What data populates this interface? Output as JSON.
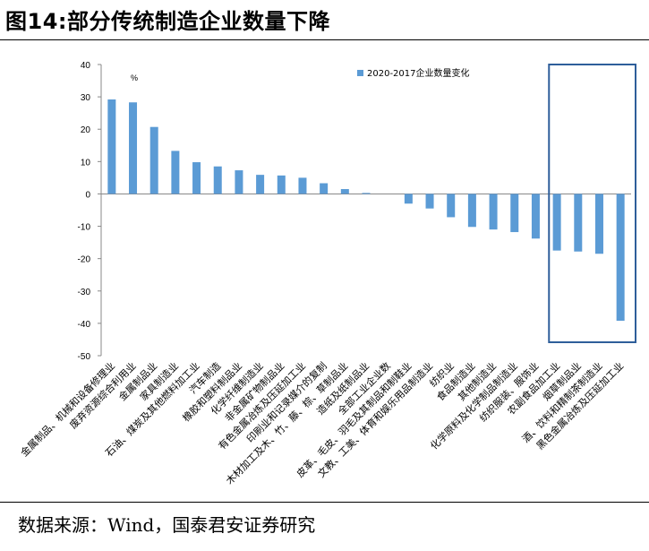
{
  "title": "图14:部分传统制造企业数量下降",
  "source": "数据来源：Wind，国泰君安证券研究",
  "chart_data": {
    "type": "bar",
    "unit": "%",
    "legend": "2020-2017企业数量变化",
    "ylim": [
      -50,
      40
    ],
    "yticks": [
      40,
      30,
      20,
      10,
      0,
      -10,
      -20,
      -30,
      -40,
      -50
    ],
    "bar_color": "#5B9BD5",
    "highlight_color": "#2E5E9A",
    "highlight_categories": [
      "农副食品加工业",
      "烟草制品业",
      "酒、饮料和精制茶制造业",
      "黑色金属冶炼及压延加工业"
    ],
    "categories": [
      "金属制品、机械和设备修理业",
      "废弃资源综合利用业",
      "金属制品业",
      "家具制造业",
      "石油、煤炭及其他燃料加工业",
      "汽车制造",
      "橡胶和塑料制品业",
      "化学纤维制造业",
      "非金属矿物制品业",
      "有色金属冶炼及压延加工业",
      "印刷业和记录媒介的复制",
      "木材加工及木、竹、藤、棕、草制品业",
      "造纸及纸制品业",
      "全部工业企业数",
      "皮革、毛皮、羽毛及其制品和制鞋业",
      "文教、工美、体育和娱乐用品制造业",
      "纺织业",
      "食品制造业",
      "其他制造业",
      "化学原料及化学制品制造业",
      "纺织服装、服饰业",
      "农副食品加工业",
      "烟草制品业",
      "酒、饮料和精制茶制造业",
      "黑色金属冶炼及压延加工业"
    ],
    "values": [
      29.2,
      28.3,
      20.7,
      13.3,
      9.8,
      8.5,
      7.3,
      5.9,
      5.7,
      5.0,
      3.3,
      1.5,
      0.3,
      0,
      -3.0,
      -4.5,
      -7.2,
      -10.2,
      -11.0,
      -11.8,
      -13.8,
      -17.5,
      -17.8,
      -18.5,
      -39.2
    ]
  }
}
